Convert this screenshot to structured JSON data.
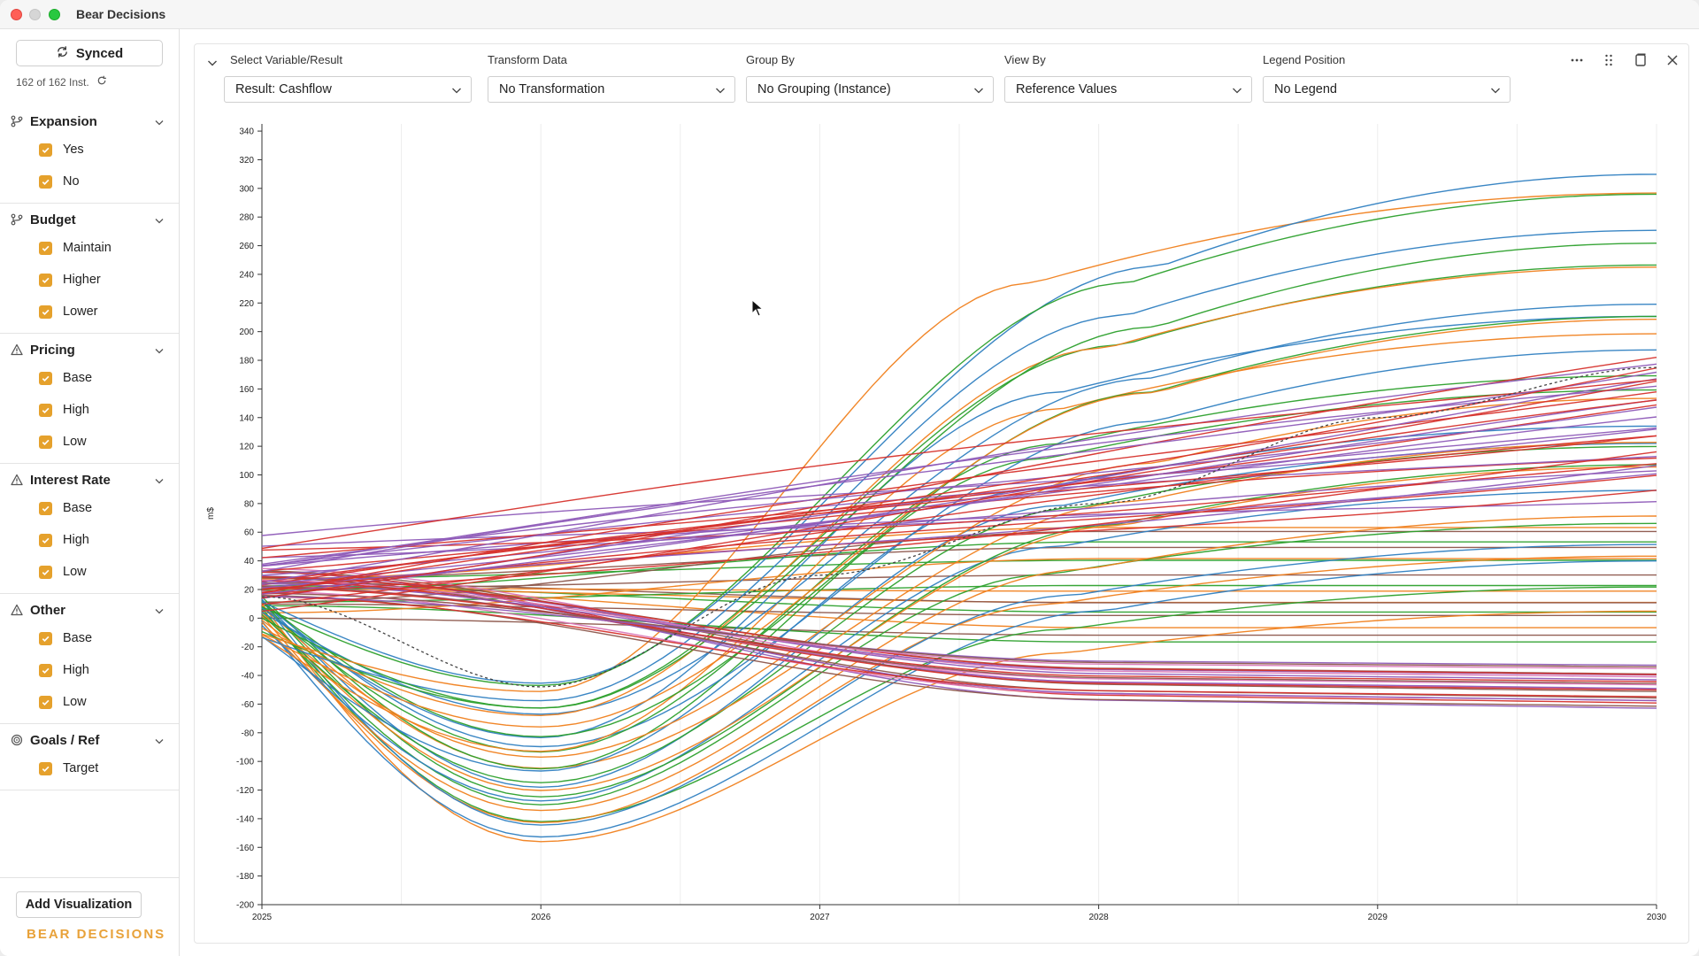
{
  "app": {
    "title": "Bear Decisions"
  },
  "sidebar": {
    "synced_label": "Synced",
    "instance_count": "162 of 162 Inst.",
    "groups": [
      {
        "title": "Expansion",
        "icon": "branch-icon",
        "options": [
          "Yes",
          "No"
        ]
      },
      {
        "title": "Budget",
        "icon": "branch-icon",
        "options": [
          "Maintain",
          "Higher",
          "Lower"
        ]
      },
      {
        "title": "Pricing",
        "icon": "warning-icon",
        "options": [
          "Base",
          "High",
          "Low"
        ]
      },
      {
        "title": "Interest Rate",
        "icon": "warning-icon",
        "options": [
          "Base",
          "High",
          "Low"
        ]
      },
      {
        "title": "Other",
        "icon": "warning-icon",
        "options": [
          "Base",
          "High",
          "Low"
        ]
      },
      {
        "title": "Goals / Ref",
        "icon": "target-icon",
        "options": [
          "Target"
        ]
      }
    ],
    "add_visualization": "Add Visualization",
    "brand": "BEAR DECISIONS"
  },
  "controls": {
    "variable": {
      "label": "Select Variable/Result",
      "value": "Result: Cashflow"
    },
    "transform": {
      "label": "Transform Data",
      "value": "No Transformation"
    },
    "group_by": {
      "label": "Group By",
      "value": "No Grouping (Instance)"
    },
    "view_by": {
      "label": "View By",
      "value": "Reference Values"
    },
    "legend": {
      "label": "Legend Position",
      "value": "No Legend"
    }
  },
  "chart_data": {
    "type": "line",
    "title": "",
    "ylabel": "m$",
    "xlabel": "",
    "x_ticks": [
      "2025",
      "2026",
      "2027",
      "2028",
      "2029",
      "2030"
    ],
    "x_range": [
      2025,
      2030
    ],
    "y_ticks": [
      340,
      320,
      300,
      280,
      260,
      240,
      220,
      200,
      180,
      160,
      140,
      120,
      100,
      80,
      60,
      40,
      20,
      0,
      -20,
      -40,
      -60,
      -80,
      -100,
      -120,
      -140,
      -160,
      -180,
      -200
    ],
    "ylim": [
      -200,
      345
    ],
    "grid": true,
    "legend": "none",
    "series_count": 162,
    "colors": {
      "orange": "#f07f1c",
      "blue": "#2f7fc1",
      "green": "#2ca02c",
      "red": "#d6322c",
      "purple": "#8e5bb8",
      "brown": "#8c564b",
      "pink": "#d977b8"
    },
    "series_bundles": [
      {
        "group": "dip-and-rise",
        "colors": [
          "orange",
          "blue",
          "green"
        ],
        "count": 30,
        "start": [
          -15,
          15
        ],
        "dip": [
          -160,
          -40
        ],
        "end": [
          0,
          320
        ]
      },
      {
        "group": "steady-rise",
        "colors": [
          "purple",
          "red"
        ],
        "count": 28,
        "start": [
          10,
          50
        ],
        "end": [
          80,
          195
        ]
      },
      {
        "group": "decline",
        "colors": [
          "purple",
          "brown",
          "red",
          "pink"
        ],
        "count": 22,
        "start": [
          10,
          35
        ],
        "end": [
          -65,
          -30
        ]
      },
      {
        "group": "flat",
        "colors": [
          "brown",
          "green",
          "orange"
        ],
        "count": 16,
        "start": [
          0,
          30
        ],
        "end": [
          -25,
          70
        ]
      }
    ],
    "reference_line": {
      "name": "Target",
      "points": [
        [
          2025,
          15
        ],
        [
          2026,
          -48
        ],
        [
          2027,
          30
        ],
        [
          2028,
          80
        ],
        [
          2029,
          140
        ],
        [
          2030,
          175
        ]
      ]
    }
  }
}
